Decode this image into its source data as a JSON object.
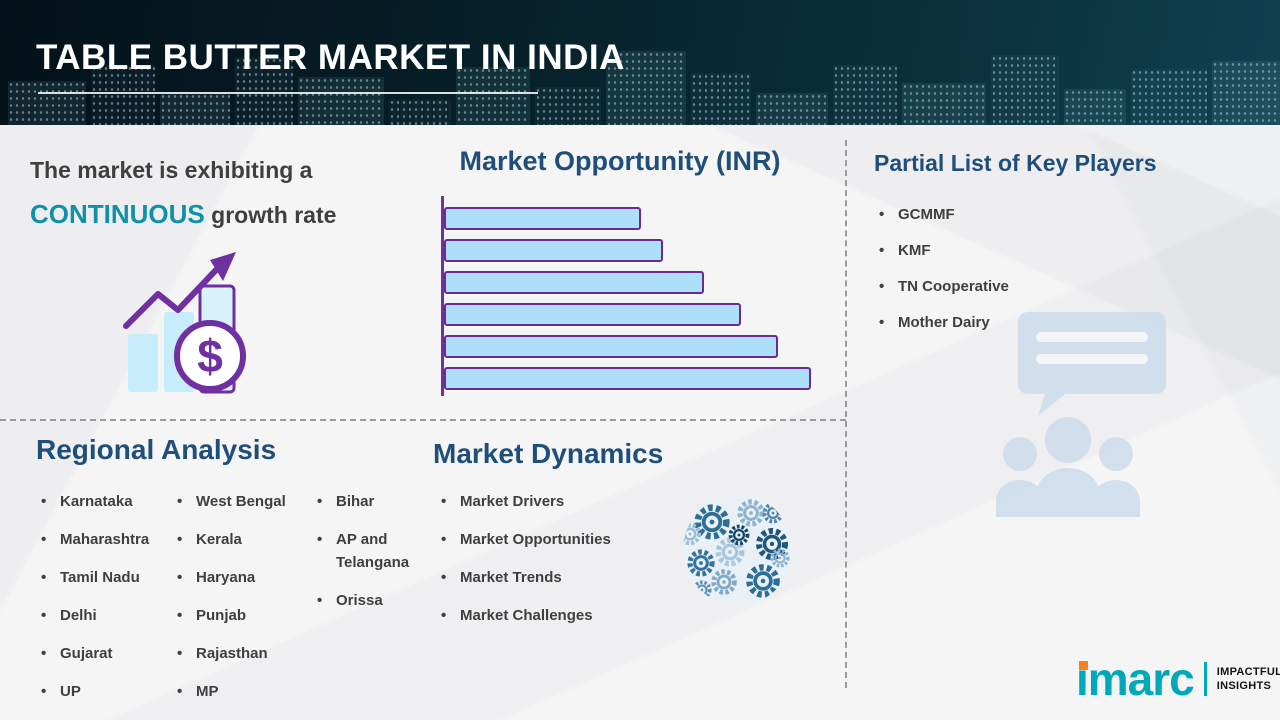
{
  "header": {
    "title": "TABLE BUTTER MARKET IN INDIA"
  },
  "growth_statement": {
    "line1": "The market is exhibiting a",
    "highlight": "CONTINUOUS",
    "rest": " growth rate"
  },
  "market_opportunity": {
    "title": "Market Opportunity (INR)"
  },
  "chart_data": {
    "type": "bar",
    "orientation": "horizontal",
    "title": "Market Opportunity (INR)",
    "values": [
      53,
      59,
      70,
      80,
      90,
      99
    ],
    "value_unit": "relative-length-percent",
    "bars": 6,
    "axis_labels_shown": false,
    "bar_fill": "#ace0f8",
    "bar_border": "#6b2c91"
  },
  "key_players": {
    "title": "Partial List of Key Players",
    "items": [
      "GCMMF",
      "KMF",
      "TN Cooperative",
      "Mother Dairy"
    ]
  },
  "regional_analysis": {
    "title": "Regional Analysis",
    "columns": [
      [
        "Karnataka",
        "Maharashtra",
        "Tamil Nadu",
        "Delhi",
        "Gujarat",
        "UP"
      ],
      [
        "West Bengal",
        "Kerala",
        "Haryana",
        "Punjab",
        "Rajasthan",
        "MP"
      ],
      [
        "Bihar",
        "AP and Telangana",
        "Orissa"
      ]
    ]
  },
  "market_dynamics": {
    "title": "Market Dynamics",
    "items": [
      "Market Drivers",
      "Market Opportunities",
      "Market Trends",
      "Market Challenges"
    ]
  },
  "logo": {
    "brand": "imarc",
    "tagline": [
      "IMPACTFUL",
      "INSIGHTS"
    ]
  },
  "colors": {
    "header_bg": "#07222c",
    "heading_blue": "#1f4e7b",
    "accent_teal": "#1191a8",
    "body_text": "#3f3f3f",
    "bar_fill": "#ace0f8",
    "bar_border": "#6b2c91",
    "purple_accent": "#7030a0",
    "logo_teal": "#00a9ba",
    "logo_orange": "#f5821f"
  }
}
